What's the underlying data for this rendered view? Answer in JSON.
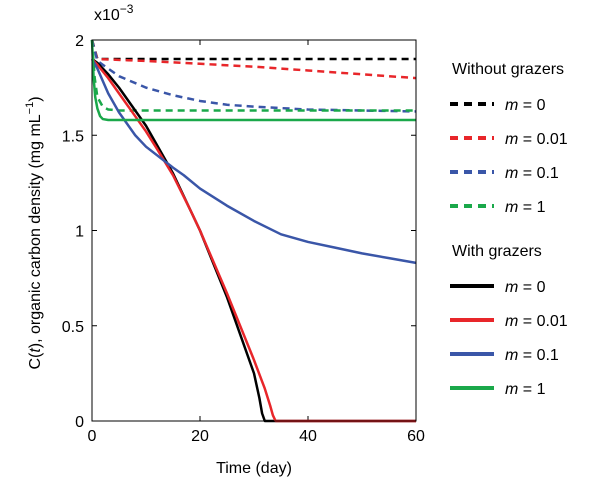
{
  "chart_data": {
    "type": "line",
    "xlabel": "Time (day)",
    "ylabel_prefix": "C(",
    "ylabel_var": "t",
    "ylabel_suffix": "), organic carbon density (mg mL",
    "ylabel_sup": "−1",
    "ylabel_close": ")",
    "y_multiplier_base": "x10",
    "y_multiplier_exp": "−3",
    "xlim": [
      0,
      60
    ],
    "ylim": [
      0,
      2
    ],
    "x_ticks": [
      0,
      20,
      40,
      60
    ],
    "x_tick_labels": [
      "0",
      "20",
      "40",
      "60"
    ],
    "y_ticks": [
      0,
      0.5,
      1,
      1.5,
      2
    ],
    "y_tick_labels": [
      "0",
      "0.5",
      "1",
      "1.5",
      "2"
    ],
    "grid": false,
    "legend_placement": "right",
    "legend_groups": [
      {
        "title": "Without grazers",
        "style": "dashed",
        "entries": [
          {
            "var": "m",
            "eq": " = 0",
            "color": "#000000"
          },
          {
            "var": "m",
            "eq": " = 0.01",
            "color": "#e8262a"
          },
          {
            "var": "m",
            "eq": " = 0.1",
            "color": "#3a56a8"
          },
          {
            "var": "m",
            "eq": " = 1",
            "color": "#1aa84a"
          }
        ]
      },
      {
        "title": "With grazers",
        "style": "solid",
        "entries": [
          {
            "var": "m",
            "eq": " = 0",
            "color": "#000000"
          },
          {
            "var": "m",
            "eq": " = 0.01",
            "color": "#e8262a"
          },
          {
            "var": "m",
            "eq": " = 0.1",
            "color": "#3a56a8"
          },
          {
            "var": "m",
            "eq": " = 1",
            "color": "#1aa84a"
          }
        ]
      }
    ],
    "series": [
      {
        "group": "Without grazers",
        "style": "dashed",
        "color": "#000000",
        "x": [
          0,
          1,
          60
        ],
        "y": [
          2.0,
          1.9,
          1.9
        ]
      },
      {
        "group": "Without grazers",
        "style": "dashed",
        "color": "#e8262a",
        "x": [
          0,
          1,
          10,
          20,
          30,
          40,
          50,
          60
        ],
        "y": [
          2.0,
          1.9,
          1.89,
          1.875,
          1.86,
          1.84,
          1.82,
          1.8
        ]
      },
      {
        "group": "Without grazers",
        "style": "dashed",
        "color": "#3a56a8",
        "x": [
          0,
          1,
          3,
          5,
          10,
          15,
          20,
          25,
          30,
          40,
          50,
          60
        ],
        "y": [
          2.0,
          1.89,
          1.85,
          1.81,
          1.75,
          1.71,
          1.68,
          1.66,
          1.65,
          1.635,
          1.63,
          1.625
        ]
      },
      {
        "group": "Without grazers",
        "style": "dashed",
        "color": "#1aa84a",
        "x": [
          0,
          0.5,
          1,
          2,
          3,
          5,
          10,
          60
        ],
        "y": [
          2.0,
          1.8,
          1.7,
          1.65,
          1.635,
          1.63,
          1.63,
          1.63
        ]
      },
      {
        "group": "With grazers",
        "style": "solid",
        "color": "#000000",
        "x": [
          0,
          1,
          3,
          5,
          8,
          10,
          12,
          15,
          18,
          20,
          25,
          30,
          31,
          31.5,
          32,
          60
        ],
        "y": [
          1.9,
          1.88,
          1.82,
          1.75,
          1.63,
          1.55,
          1.45,
          1.3,
          1.12,
          1.0,
          0.65,
          0.25,
          0.12,
          0.04,
          0,
          0
        ]
      },
      {
        "group": "With grazers",
        "style": "solid",
        "color": "#e8262a",
        "x": [
          0,
          1,
          3,
          5,
          8,
          10,
          12,
          15,
          18,
          20,
          25,
          30,
          32,
          33,
          33.5,
          34,
          60
        ],
        "y": [
          1.9,
          1.87,
          1.8,
          1.72,
          1.6,
          1.52,
          1.43,
          1.29,
          1.12,
          1.0,
          0.67,
          0.32,
          0.17,
          0.08,
          0.03,
          0,
          0
        ]
      },
      {
        "group": "With grazers",
        "style": "solid",
        "color": "#3a56a8",
        "x": [
          0,
          1,
          3,
          5,
          8,
          10,
          15,
          17,
          20,
          25,
          30,
          35,
          40,
          45,
          50,
          55,
          60
        ],
        "y": [
          1.9,
          1.85,
          1.72,
          1.62,
          1.5,
          1.44,
          1.33,
          1.29,
          1.22,
          1.13,
          1.05,
          0.98,
          0.94,
          0.91,
          0.88,
          0.855,
          0.83
        ]
      },
      {
        "group": "With grazers",
        "style": "solid",
        "color": "#1aa84a",
        "x": [
          0,
          0.3,
          0.6,
          1,
          1.5,
          2,
          3,
          5,
          60
        ],
        "y": [
          2.0,
          1.8,
          1.7,
          1.64,
          1.6,
          1.585,
          1.58,
          1.58,
          1.58
        ]
      }
    ]
  }
}
